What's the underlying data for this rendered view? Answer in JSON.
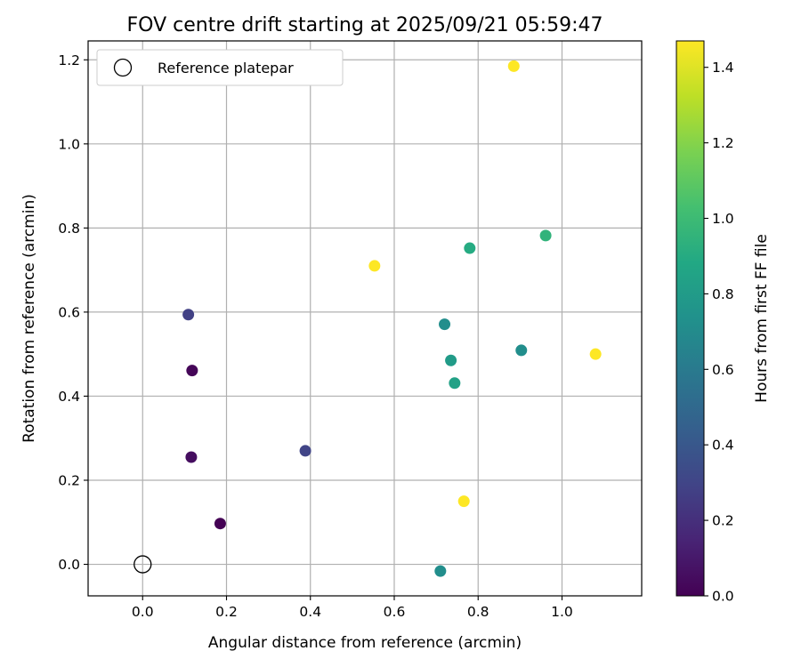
{
  "chart_data": {
    "type": "scatter",
    "title": "FOV centre drift starting at 2025/09/21 05:59:47",
    "xlabel": "Angular distance from reference (arcmin)",
    "ylabel": "Rotation from reference (arcmin)",
    "xlim": [
      -0.13,
      1.19
    ],
    "ylim": [
      -0.075,
      1.245
    ],
    "xticks": [
      0.0,
      0.2,
      0.4,
      0.6,
      0.8,
      1.0
    ],
    "xtick_labels": [
      "0.0",
      "0.2",
      "0.4",
      "0.6",
      "0.8",
      "1.0"
    ],
    "yticks": [
      0.0,
      0.2,
      0.4,
      0.6,
      0.8,
      1.0,
      1.2
    ],
    "ytick_labels": [
      "0.0",
      "0.2",
      "0.4",
      "0.6",
      "0.8",
      "1.0",
      "1.2"
    ],
    "grid": true,
    "legend": {
      "position": "top-left",
      "entries": [
        {
          "label": "Reference platepar",
          "marker": "open-circle"
        }
      ]
    },
    "reference_point": {
      "x": 0.0,
      "y": 0.0
    },
    "colorbar": {
      "label": "Hours from first FF file",
      "colormap": "viridis",
      "range": [
        0.0,
        1.47
      ],
      "ticks": [
        0.0,
        0.2,
        0.4,
        0.6,
        0.8,
        1.0,
        1.2,
        1.4
      ],
      "tick_labels": [
        "0.0",
        "0.2",
        "0.4",
        "0.6",
        "0.8",
        "1.0",
        "1.2",
        "1.4"
      ]
    },
    "points": [
      {
        "x": 0.185,
        "y": 0.097,
        "hours": 0.0
      },
      {
        "x": 0.118,
        "y": 0.461,
        "hours": 0.02
      },
      {
        "x": 0.116,
        "y": 0.255,
        "hours": 0.05
      },
      {
        "x": 0.109,
        "y": 0.594,
        "hours": 0.28
      },
      {
        "x": 0.388,
        "y": 0.27,
        "hours": 0.3
      },
      {
        "x": 0.71,
        "y": -0.016,
        "hours": 0.72
      },
      {
        "x": 0.72,
        "y": 0.571,
        "hours": 0.72
      },
      {
        "x": 0.903,
        "y": 0.509,
        "hours": 0.72
      },
      {
        "x": 0.735,
        "y": 0.485,
        "hours": 0.8
      },
      {
        "x": 0.744,
        "y": 0.431,
        "hours": 0.84
      },
      {
        "x": 0.78,
        "y": 0.752,
        "hours": 0.9
      },
      {
        "x": 0.961,
        "y": 0.782,
        "hours": 0.95
      },
      {
        "x": 0.553,
        "y": 0.71,
        "hours": 1.47
      },
      {
        "x": 0.766,
        "y": 0.15,
        "hours": 1.47
      },
      {
        "x": 0.885,
        "y": 1.185,
        "hours": 1.47
      },
      {
        "x": 1.08,
        "y": 0.5,
        "hours": 1.47
      }
    ]
  }
}
